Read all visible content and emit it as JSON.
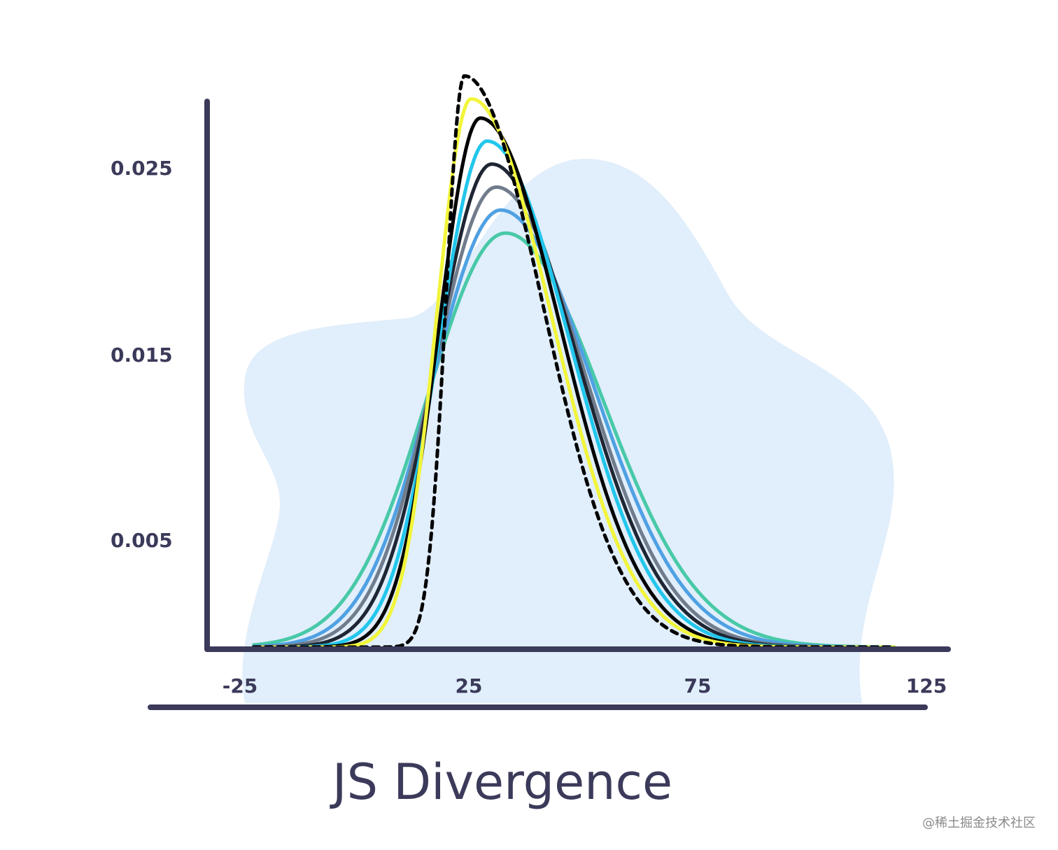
{
  "chart_data": {
    "type": "line",
    "title": "JS Divergence",
    "xlabel": "",
    "ylabel": "",
    "xlim": [
      -30,
      130
    ],
    "ylim": [
      0,
      0.03
    ],
    "x_ticks": [
      "-25",
      "25",
      "75",
      "125"
    ],
    "y_ticks": [
      "0.025",
      "0.015",
      "0.005"
    ],
    "grid": false,
    "series": [
      {
        "color": "#48c9a7",
        "style": "solid",
        "mean": 33,
        "sd_left": 17,
        "sd_right": 21,
        "peak": 0.0216
      },
      {
        "color": "#4fa1e3",
        "style": "solid",
        "mean": 32,
        "sd_left": 15,
        "sd_right": 20,
        "peak": 0.0228
      },
      {
        "color": "#707c8c",
        "style": "solid",
        "mean": 31,
        "sd_left": 13.5,
        "sd_right": 19,
        "peak": 0.024
      },
      {
        "color": "#1e2533",
        "style": "solid",
        "mean": 30,
        "sd_left": 12,
        "sd_right": 18.5,
        "peak": 0.0252
      },
      {
        "color": "#22c6ec",
        "style": "solid",
        "mean": 29,
        "sd_left": 10.5,
        "sd_right": 18,
        "peak": 0.0264
      },
      {
        "color": "#000000",
        "style": "solid",
        "mean": 27.5,
        "sd_left": 9,
        "sd_right": 17.5,
        "peak": 0.0276
      },
      {
        "color": "#f2f53a",
        "style": "solid",
        "mean": 25.5,
        "sd_left": 7.5,
        "sd_right": 17.5,
        "peak": 0.0286
      },
      {
        "color": "#000000",
        "style": "dashed",
        "mean": 24,
        "sd_left": 4,
        "sd_right": 17,
        "peak": 0.0298
      }
    ]
  },
  "watermark": "@稀土掘金技术社区"
}
